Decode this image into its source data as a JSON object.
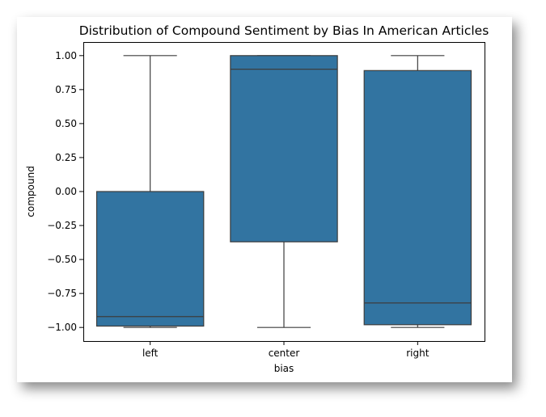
{
  "chart_data": {
    "type": "box",
    "title": "Distribution of Compound Sentiment by Bias In American Articles",
    "xlabel": "bias",
    "ylabel": "compound",
    "ylim": [
      -1.1,
      1.1
    ],
    "yticks": [
      -1.0,
      -0.75,
      -0.5,
      -0.25,
      0.0,
      0.25,
      0.5,
      0.75,
      1.0
    ],
    "ytick_labels": [
      "−1.00",
      "−0.75",
      "−0.50",
      "−0.25",
      "0.00",
      "0.25",
      "0.50",
      "0.75",
      "1.00"
    ],
    "categories": [
      "left",
      "center",
      "right"
    ],
    "boxes": [
      {
        "category": "left",
        "whisker_low": -1.0,
        "q1": -0.99,
        "median": -0.92,
        "q3": 0.0,
        "whisker_high": 1.0
      },
      {
        "category": "center",
        "whisker_low": -1.0,
        "q1": -0.37,
        "median": 0.9,
        "q3": 1.0,
        "whisker_high": 1.0
      },
      {
        "category": "right",
        "whisker_low": -1.0,
        "q1": -0.98,
        "median": -0.82,
        "q3": 0.89,
        "whisker_high": 1.0
      }
    ],
    "box_color": "#3274a1",
    "line_color": "#3d3d3d",
    "grid": false,
    "legend": false
  }
}
